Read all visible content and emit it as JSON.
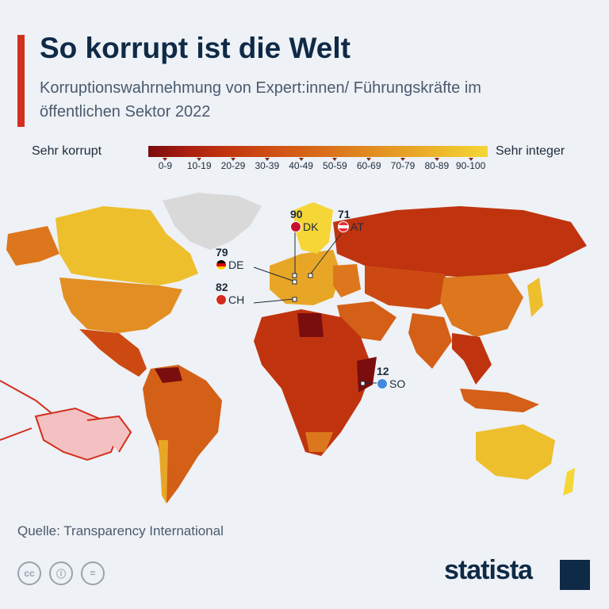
{
  "header": {
    "title": "So korrupt ist die Welt",
    "subtitle": "Korruptionswahrnehmung von Expert:innen/ Führungskräfte im öffentlichen Sektor 2022"
  },
  "legend": {
    "left_label": "Sehr korrupt",
    "right_label": "Sehr integer",
    "bins": [
      "0-9",
      "10-19",
      "20-29",
      "30-39",
      "40-49",
      "50-59",
      "60-69",
      "70-79",
      "80-89",
      "90-100"
    ],
    "colors": [
      "#7a0d0d",
      "#a81e10",
      "#c0330f",
      "#cc4a12",
      "#d45f17",
      "#dc771d",
      "#e28e22",
      "#e8a627",
      "#eebf2d",
      "#f5d636"
    ]
  },
  "callouts": [
    {
      "code": "DK",
      "value": "90",
      "flag": "denmark"
    },
    {
      "code": "AT",
      "value": "71",
      "flag": "austria"
    },
    {
      "code": "DE",
      "value": "79",
      "flag": "germany"
    },
    {
      "code": "CH",
      "value": "82",
      "flag": "switzerland"
    },
    {
      "code": "SO",
      "value": "12",
      "flag": "somalia"
    }
  ],
  "footer": {
    "source": "Quelle: Transparency International",
    "brand": "statista",
    "license_icons": [
      "cc-icon",
      "by-icon",
      "nd-icon"
    ]
  }
}
